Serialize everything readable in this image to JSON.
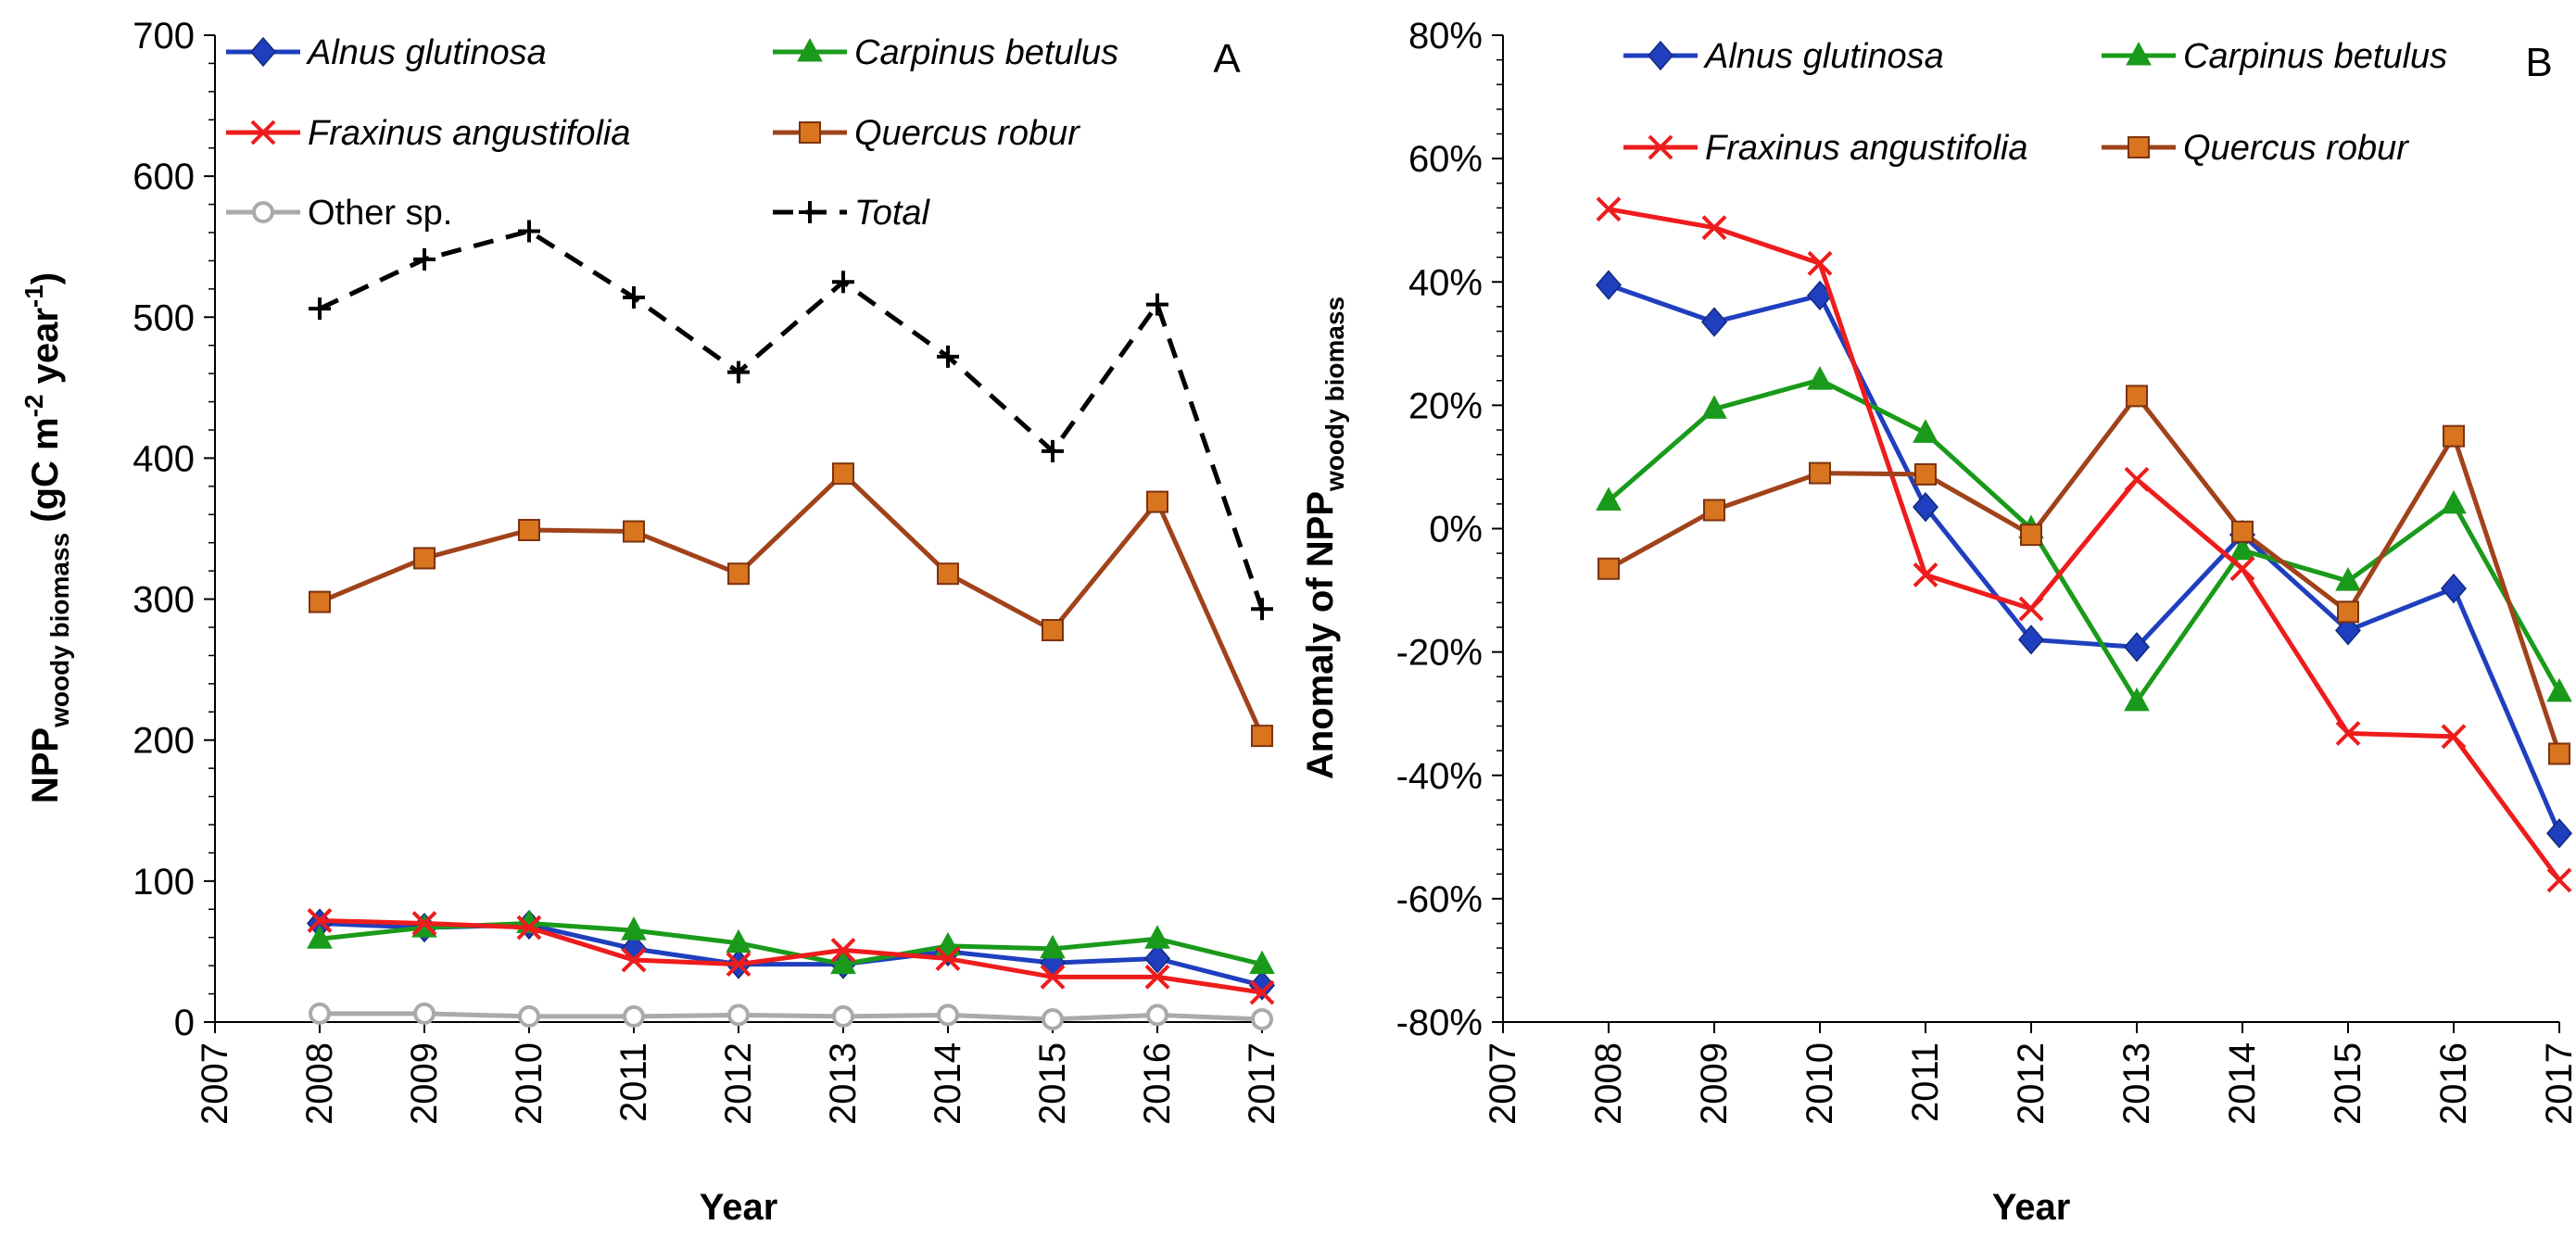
{
  "chart_data": [
    {
      "type": "line",
      "panel_label": "A",
      "xlabel": "Year",
      "ylabel": {
        "main": "NPP",
        "sub": "woody biomass",
        "unit_pre": " (gC m",
        "exp1": "-2",
        "unit_mid": " year",
        "exp2": "-1",
        "unit_post": ")"
      },
      "xlim": [
        2007,
        2017
      ],
      "ylim": [
        0,
        700
      ],
      "x_ticks": [
        "2007",
        "2008",
        "2009",
        "2010",
        "2011",
        "2012",
        "2013",
        "2014",
        "2015",
        "2016",
        "2017"
      ],
      "y_ticks": [
        "0",
        "100",
        "200",
        "300",
        "400",
        "500",
        "600",
        "700"
      ],
      "y_tick_values": [
        0,
        100,
        200,
        300,
        400,
        500,
        600,
        700
      ],
      "grid": false,
      "legend_position": "top",
      "x": [
        2008,
        2009,
        2010,
        2011,
        2012,
        2013,
        2014,
        2015,
        2016,
        2017
      ],
      "series": [
        {
          "name": "Alnus glutinosa",
          "italic": true,
          "color": "#1f3fbf",
          "marker": "diamond",
          "values": [
            70,
            67,
            69,
            52,
            41,
            41,
            50,
            42,
            45,
            26
          ]
        },
        {
          "name": "Carpinus betulus",
          "italic": true,
          "color": "#1a9a1a",
          "marker": "triangle",
          "values": [
            59,
            67,
            70,
            65,
            56,
            41,
            54,
            52,
            59,
            41
          ]
        },
        {
          "name": "Fraxinus angustifolia",
          "italic": true,
          "color": "#ee1c1c",
          "marker": "x",
          "values": [
            72,
            70,
            67,
            44,
            41,
            51,
            45,
            32,
            32,
            21
          ]
        },
        {
          "name": "Quercus robur",
          "italic": true,
          "color": "#a0421a",
          "marker": "square",
          "values": [
            298,
            329,
            349,
            348,
            318,
            389,
            318,
            278,
            369,
            203
          ]
        },
        {
          "name": "Other sp.",
          "italic": false,
          "color": "#aaaaaa",
          "marker": "circle",
          "values": [
            6,
            6,
            4,
            4,
            5,
            4,
            5,
            2,
            5,
            2
          ]
        },
        {
          "name": "Total",
          "italic": true,
          "color": "#000000",
          "marker": "plus",
          "dashed": true,
          "values": [
            506,
            541,
            561,
            514,
            461,
            525,
            472,
            405,
            509,
            293
          ]
        }
      ]
    },
    {
      "type": "line",
      "panel_label": "B",
      "xlabel": "Year",
      "ylabel": {
        "main": "Anomaly of NPP",
        "sub": "woody biomass"
      },
      "xlim": [
        2007,
        2017
      ],
      "ylim": [
        -80,
        80
      ],
      "y_unit": "%",
      "x_ticks": [
        "2007",
        "2008",
        "2009",
        "2010",
        "2011",
        "2012",
        "2013",
        "2014",
        "2015",
        "2016",
        "2017"
      ],
      "y_ticks": [
        "-80%",
        "-60%",
        "-40%",
        "-20%",
        "0%",
        "20%",
        "40%",
        "60%",
        "80%"
      ],
      "y_tick_values": [
        -80,
        -60,
        -40,
        -20,
        0,
        20,
        40,
        60,
        80
      ],
      "grid": false,
      "legend_position": "top",
      "x": [
        2008,
        2009,
        2010,
        2011,
        2012,
        2013,
        2014,
        2015,
        2016,
        2017
      ],
      "series": [
        {
          "name": "Alnus glutinosa",
          "italic": true,
          "color": "#1f3fbf",
          "marker": "diamond",
          "values": [
            39.5,
            33.5,
            37.8,
            3.5,
            -18.0,
            -19.2,
            -1.0,
            -16.5,
            -9.7,
            -49.4
          ]
        },
        {
          "name": "Carpinus betulus",
          "italic": true,
          "color": "#1a9a1a",
          "marker": "triangle",
          "values": [
            4.5,
            19.4,
            24.1,
            15.5,
            0.0,
            -28.0,
            -3.5,
            -8.5,
            4.0,
            -26.5
          ]
        },
        {
          "name": "Fraxinus angustifolia",
          "italic": true,
          "color": "#ee1c1c",
          "marker": "x",
          "values": [
            51.8,
            48.8,
            43.0,
            -7.5,
            -13.0,
            8.0,
            -6.5,
            -33.2,
            -33.7,
            -57.0
          ]
        },
        {
          "name": "Quercus robur",
          "italic": true,
          "color": "#a0421a",
          "marker": "square",
          "values": [
            -6.5,
            3.0,
            9.0,
            8.8,
            -1.0,
            21.5,
            -0.5,
            -13.5,
            15.0,
            -36.5
          ]
        }
      ]
    }
  ]
}
